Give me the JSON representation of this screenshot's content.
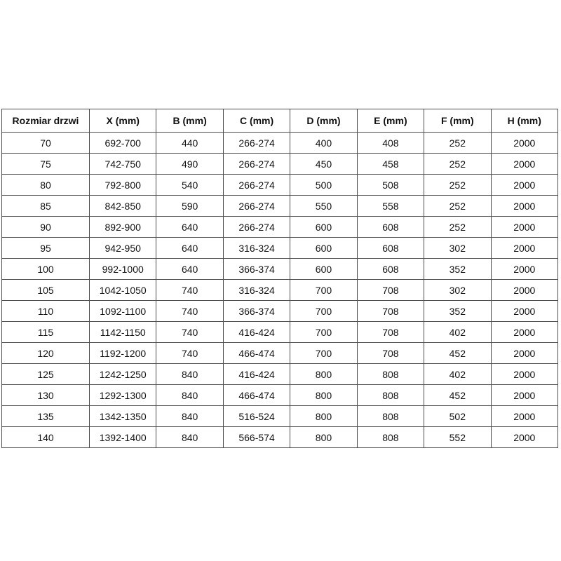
{
  "page": {
    "background": "#ffffff"
  },
  "colors": {
    "table_border": "#4d4d4d",
    "text": "#111111"
  },
  "table": {
    "name": "door-size-specification-table",
    "columns": [
      "Rozmiar drzwi",
      "X (mm)",
      "B (mm)",
      "C (mm)",
      "D (mm)",
      "E (mm)",
      "F (mm)",
      "H (mm)"
    ],
    "rows": [
      [
        "70",
        "692-700",
        "440",
        "266-274",
        "400",
        "408",
        "252",
        "2000"
      ],
      [
        "75",
        "742-750",
        "490",
        "266-274",
        "450",
        "458",
        "252",
        "2000"
      ],
      [
        "80",
        "792-800",
        "540",
        "266-274",
        "500",
        "508",
        "252",
        "2000"
      ],
      [
        "85",
        "842-850",
        "590",
        "266-274",
        "550",
        "558",
        "252",
        "2000"
      ],
      [
        "90",
        "892-900",
        "640",
        "266-274",
        "600",
        "608",
        "252",
        "2000"
      ],
      [
        "95",
        "942-950",
        "640",
        "316-324",
        "600",
        "608",
        "302",
        "2000"
      ],
      [
        "100",
        "992-1000",
        "640",
        "366-374",
        "600",
        "608",
        "352",
        "2000"
      ],
      [
        "105",
        "1042-1050",
        "740",
        "316-324",
        "700",
        "708",
        "302",
        "2000"
      ],
      [
        "110",
        "1092-1100",
        "740",
        "366-374",
        "700",
        "708",
        "352",
        "2000"
      ],
      [
        "115",
        "1142-1150",
        "740",
        "416-424",
        "700",
        "708",
        "402",
        "2000"
      ],
      [
        "120",
        "1192-1200",
        "740",
        "466-474",
        "700",
        "708",
        "452",
        "2000"
      ],
      [
        "125",
        "1242-1250",
        "840",
        "416-424",
        "800",
        "808",
        "402",
        "2000"
      ],
      [
        "130",
        "1292-1300",
        "840",
        "466-474",
        "800",
        "808",
        "452",
        "2000"
      ],
      [
        "135",
        "1342-1350",
        "840",
        "516-524",
        "800",
        "808",
        "502",
        "2000"
      ],
      [
        "140",
        "1392-1400",
        "840",
        "566-574",
        "800",
        "808",
        "552",
        "2000"
      ]
    ]
  }
}
